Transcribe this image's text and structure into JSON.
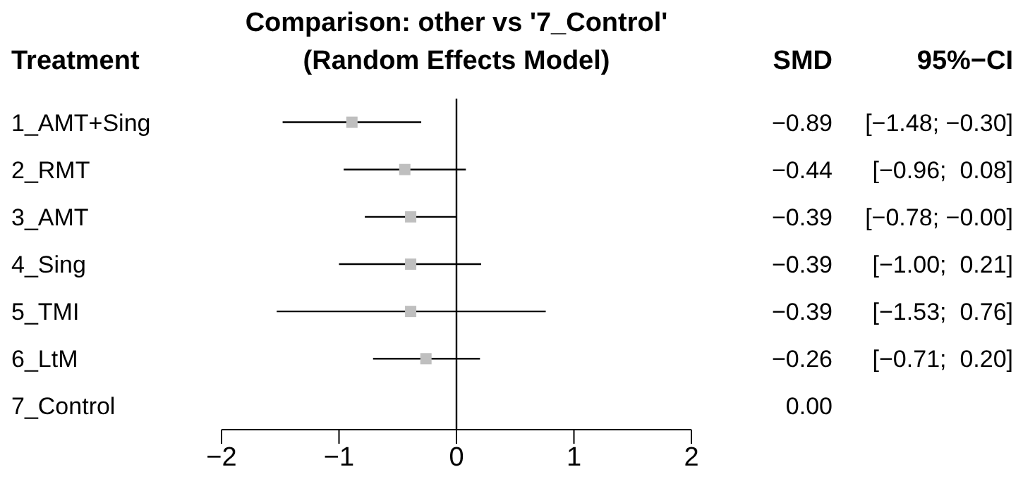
{
  "chart_data": {
    "type": "scatter",
    "orientation": "horizontal",
    "title": "Comparison: other vs '7_Control'",
    "subtitle": "(Random Effects Model)",
    "annotations": [
      "Treatment",
      "SMD",
      "95%−CI"
    ],
    "categories": [
      "1_AMT+Sing",
      "2_RMT",
      "3_AMT",
      "4_Sing",
      "5_TMI",
      "6_LtM",
      "7_Control"
    ],
    "values": [
      -0.89,
      -0.44,
      -0.39,
      -0.39,
      -0.39,
      -0.26,
      null
    ],
    "errors": [
      [
        -1.48,
        -0.3
      ],
      [
        -0.96,
        0.08
      ],
      [
        -0.78,
        0
      ],
      [
        -1.0,
        0.21
      ],
      [
        -1.53,
        0.76
      ],
      [
        -0.71,
        0.2
      ],
      null
    ],
    "value_labels": [
      "−0.89 [−1.48; −0.30]",
      "−0.44 [−0.96;  0.08]",
      "−0.39 [−0.78; −0.00]",
      "−0.39 [−1.00;  0.21]",
      "−0.39 [−1.53;  0.76]",
      "−0.26 [−0.71;  0.20]",
      "0.00"
    ],
    "color": "#bfbfbf",
    "marker": "square",
    "xlim": [
      -2,
      2
    ],
    "xticks": [
      -2,
      -1,
      0,
      1,
      2
    ],
    "ref_lines": [
      {
        "axis": "x",
        "value": 0,
        "color": "#000000"
      }
    ],
    "grid": false,
    "legend": false
  }
}
